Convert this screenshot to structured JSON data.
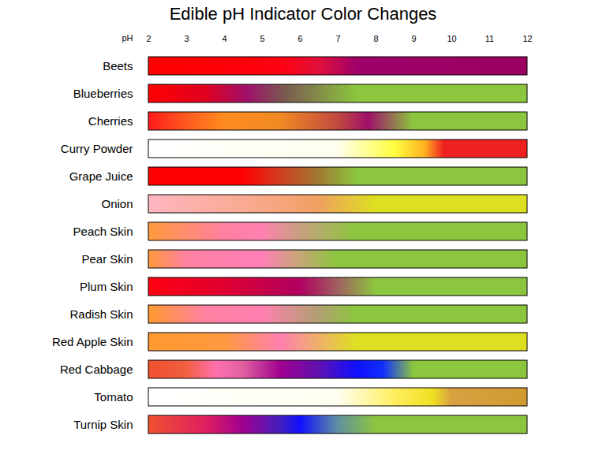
{
  "chart_data": {
    "type": "bar",
    "orientation": "horizontal",
    "title": "Edible pH Indicator Color Changes",
    "xlabel": "pH",
    "xlim": [
      2,
      12
    ],
    "xticks": [
      2,
      3,
      4,
      5,
      6,
      7,
      8,
      9,
      10,
      11,
      12
    ],
    "categories": [
      "Beets",
      "Blueberries",
      "Cherries",
      "Curry Powder",
      "Grape Juice",
      "Onion",
      "Peach Skin",
      "Pear Skin",
      "Plum Skin",
      "Radish Skin",
      "Red Apple Skin",
      "Red Cabbage",
      "Tomato",
      "Turnip Skin"
    ],
    "series": [
      {
        "name": "Beets",
        "x": [
          2,
          5.5,
          6.5,
          7.5,
          12
        ],
        "colors": [
          "#ff0000",
          "#ff0010",
          "#e0103a",
          "#a0006a",
          "#9c0060"
        ]
      },
      {
        "name": "Blueberries",
        "x": [
          2,
          3.5,
          4.6,
          5.6,
          7.5,
          12
        ],
        "colors": [
          "#ff0000",
          "#e00020",
          "#a0106a",
          "#7a5a50",
          "#8cc63e",
          "#8cc63e"
        ]
      },
      {
        "name": "Cherries",
        "x": [
          2,
          3,
          4,
          5.5,
          7,
          7.8,
          9,
          12
        ],
        "colors": [
          "#ff1a1a",
          "#ff5a1f",
          "#ff8c1f",
          "#f08a24",
          "#c04a40",
          "#a0106a",
          "#8cc63e",
          "#8cc63e"
        ]
      },
      {
        "name": "Curry Powder",
        "x": [
          2,
          7,
          8.5,
          9.3,
          9.8,
          12
        ],
        "colors": [
          "#ffffff",
          "#ffffee",
          "#ffff40",
          "#ffb020",
          "#ee2020",
          "#ee2020"
        ]
      },
      {
        "name": "Grape Juice",
        "x": [
          2,
          4.5,
          5.5,
          6.5,
          7.5,
          12
        ],
        "colors": [
          "#ff0000",
          "#ff0000",
          "#d04020",
          "#a07a30",
          "#8cc63e",
          "#8cc63e"
        ]
      },
      {
        "name": "Onion",
        "x": [
          2,
          5,
          6.5,
          8,
          12
        ],
        "colors": [
          "#ffb6c1",
          "#f8a888",
          "#f0a060",
          "#dde020",
          "#dde020"
        ]
      },
      {
        "name": "Peach Skin",
        "x": [
          2,
          4,
          5,
          6,
          7.5,
          12
        ],
        "colors": [
          "#ff9a3c",
          "#ff80a0",
          "#ff80b0",
          "#c8a080",
          "#8cc63e",
          "#8cc63e"
        ]
      },
      {
        "name": "Pear Skin",
        "x": [
          2,
          3,
          5,
          5.8,
          7,
          12
        ],
        "colors": [
          "#ff9a3c",
          "#ff80a0",
          "#ff80b8",
          "#d0a080",
          "#8cc63e",
          "#8cc63e"
        ]
      },
      {
        "name": "Plum Skin",
        "x": [
          2,
          4,
          6,
          7,
          8,
          12
        ],
        "colors": [
          "#ff0010",
          "#e00030",
          "#b00060",
          "#a06060",
          "#8cc63e",
          "#8cc63e"
        ]
      },
      {
        "name": "Radish Skin",
        "x": [
          2,
          3.5,
          5,
          6.5,
          7.5,
          12
        ],
        "colors": [
          "#ff9a30",
          "#ff80a0",
          "#ff80b0",
          "#b0a070",
          "#8cc63e",
          "#8cc63e"
        ]
      },
      {
        "name": "Red Apple Skin",
        "x": [
          2,
          4,
          5.5,
          7.5,
          12
        ],
        "colors": [
          "#ff9a30",
          "#ff9a40",
          "#ff80b0",
          "#dde020",
          "#dde020"
        ]
      },
      {
        "name": "Red Cabbage",
        "x": [
          2,
          3,
          3.8,
          4.5,
          5.5,
          6.5,
          7.5,
          8.2,
          9,
          12
        ],
        "colors": [
          "#f05030",
          "#f06040",
          "#ff70b0",
          "#e060a0",
          "#a00090",
          "#6010b0",
          "#1010ff",
          "#1030ff",
          "#8cc63e",
          "#8cc63e"
        ]
      },
      {
        "name": "Tomato",
        "x": [
          2,
          7,
          8.5,
          9.5,
          10,
          12
        ],
        "colors": [
          "#ffffff",
          "#fffff0",
          "#ffee60",
          "#f0e020",
          "#d8a040",
          "#d09a30"
        ]
      },
      {
        "name": "Turnip Skin",
        "x": [
          2,
          3.5,
          4.5,
          5.5,
          6,
          7,
          8,
          12
        ],
        "colors": [
          "#f05030",
          "#e02060",
          "#a00090",
          "#4020c0",
          "#1010ff",
          "#6090a0",
          "#8cc63e",
          "#8cc63e"
        ]
      }
    ]
  }
}
